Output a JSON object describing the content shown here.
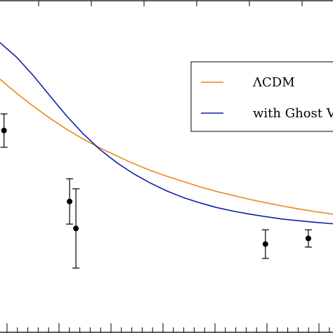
{
  "chart_data": {
    "type": "line",
    "series": [
      {
        "name": "ΛCDM",
        "color": "#e8891a",
        "x": [
          0.0,
          0.05,
          0.1,
          0.15,
          0.2,
          0.25,
          0.3,
          0.35,
          0.4,
          0.45,
          0.5,
          0.55,
          0.6,
          0.65,
          0.7,
          0.75,
          0.8,
          0.85,
          0.9,
          0.95,
          1.0
        ],
        "y": [
          0.238,
          0.28,
          0.319,
          0.355,
          0.388,
          0.418,
          0.444,
          0.468,
          0.491,
          0.511,
          0.529,
          0.545,
          0.561,
          0.575,
          0.587,
          0.599,
          0.609,
          0.619,
          0.628,
          0.636,
          0.643
        ]
      },
      {
        "name": "with Ghost V",
        "color": "#1020a8",
        "x": [
          0.0,
          0.05,
          0.1,
          0.15,
          0.2,
          0.25,
          0.3,
          0.35,
          0.4,
          0.45,
          0.5,
          0.55,
          0.6,
          0.65,
          0.7,
          0.75,
          0.8,
          0.85,
          0.9,
          0.95,
          1.0
        ],
        "y": [
          0.128,
          0.172,
          0.227,
          0.288,
          0.348,
          0.402,
          0.449,
          0.488,
          0.521,
          0.549,
          0.573,
          0.593,
          0.609,
          0.623,
          0.634,
          0.643,
          0.651,
          0.658,
          0.663,
          0.668,
          0.672
        ]
      }
    ],
    "points": [
      {
        "x": 0.012,
        "y": 0.392,
        "err": 0.05
      },
      {
        "x": 0.209,
        "y": 0.605,
        "err": 0.068
      },
      {
        "x": 0.228,
        "y": 0.686,
        "err": 0.119
      },
      {
        "x": 0.797,
        "y": 0.733,
        "err": 0.043
      },
      {
        "x": 0.926,
        "y": 0.716,
        "err": 0.026
      }
    ],
    "xlim": [
      0,
      1
    ],
    "ylim": [
      0,
      1
    ],
    "legend_position": "top-right",
    "grid": false
  }
}
